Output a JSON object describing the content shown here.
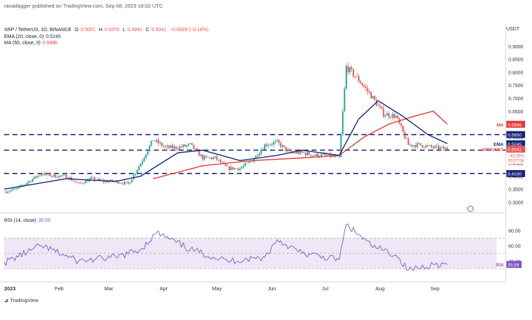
{
  "header": {
    "published_by": "ranadagger published on TradingView.com, Sep 08, 2023 18:02 UTC"
  },
  "legend": {
    "symbol_line": {
      "symbol": "XRP / TetherUS, 1D, BINANCE",
      "o_label": "O",
      "o": "0.5051",
      "h_label": "H",
      "h": "0.5076",
      "l_label": "L",
      "l": "0.4941",
      "c_label": "C",
      "c": "0.5041",
      "change": "−0.0009 (−0.18%)"
    },
    "ema_line": {
      "label": "EMA (20, close, 0)",
      "value": "0.5245"
    },
    "ma_line": {
      "label": "MA (50, close, 0)",
      "value": "0.5996"
    }
  },
  "currency": "USDT",
  "watermark": "TradingView",
  "colors": {
    "up": "#26a69a",
    "down": "#ef5350",
    "ema": "#0d2a7a",
    "ma": "#e53935",
    "level": "#1a237e",
    "rsi": "#7e57c2",
    "rsi_band": "#ede7f6"
  },
  "chart_data": {
    "type": "candlestick",
    "title": "XRP / TetherUS, 1D, BINANCE",
    "x_ticks": [
      "2023",
      "Feb",
      "Mar",
      "Apr",
      "May",
      "Jun",
      "Jul",
      "Aug",
      "Sep"
    ],
    "y_ticks": [
      "0.9000",
      "0.8500",
      "0.8000",
      "0.7500",
      "0.7000",
      "0.6500",
      "0.6000",
      "0.5500",
      "0.5000",
      "0.4500",
      "0.4000",
      "0.3500",
      "0.3000"
    ],
    "ylim": [
      0.28,
      0.95
    ],
    "horizontal_levels": [
      {
        "value": 0.56,
        "label": "0.5600"
      },
      {
        "value": 0.5,
        "label": "0.5000"
      },
      {
        "value": 0.41,
        "label": "0.4100"
      }
    ],
    "price_tags": [
      {
        "name": "MA",
        "value": 0.5996,
        "label": "0.5996"
      },
      {
        "name": "EMA",
        "value": 0.5245,
        "label": "0.5245"
      },
      {
        "name": "XRPUSDT",
        "value": 0.5041,
        "label": "0.5041",
        "sub1": "−43.29%",
        "sub2": "05:57:08"
      }
    ],
    "price_series": [
      {
        "date": "2023-01-01",
        "close": 0.34
      },
      {
        "date": "2023-01-08",
        "close": 0.35
      },
      {
        "date": "2023-01-15",
        "close": 0.38
      },
      {
        "date": "2023-01-22",
        "close": 0.41
      },
      {
        "date": "2023-01-29",
        "close": 0.4
      },
      {
        "date": "2023-02-05",
        "close": 0.4
      },
      {
        "date": "2023-02-12",
        "close": 0.37
      },
      {
        "date": "2023-02-19",
        "close": 0.39
      },
      {
        "date": "2023-02-26",
        "close": 0.38
      },
      {
        "date": "2023-03-05",
        "close": 0.38
      },
      {
        "date": "2023-03-12",
        "close": 0.37
      },
      {
        "date": "2023-03-19",
        "close": 0.45
      },
      {
        "date": "2023-03-26",
        "close": 0.54
      },
      {
        "date": "2023-04-02",
        "close": 0.51
      },
      {
        "date": "2023-04-09",
        "close": 0.51
      },
      {
        "date": "2023-04-16",
        "close": 0.52
      },
      {
        "date": "2023-04-23",
        "close": 0.47
      },
      {
        "date": "2023-04-30",
        "close": 0.47
      },
      {
        "date": "2023-05-07",
        "close": 0.43
      },
      {
        "date": "2023-05-14",
        "close": 0.43
      },
      {
        "date": "2023-05-21",
        "close": 0.46
      },
      {
        "date": "2023-05-28",
        "close": 0.52
      },
      {
        "date": "2023-06-04",
        "close": 0.53
      },
      {
        "date": "2023-06-11",
        "close": 0.49
      },
      {
        "date": "2023-06-18",
        "close": 0.49
      },
      {
        "date": "2023-06-25",
        "close": 0.48
      },
      {
        "date": "2023-07-02",
        "close": 0.48
      },
      {
        "date": "2023-07-09",
        "close": 0.47
      },
      {
        "date": "2023-07-13",
        "close": 0.82
      },
      {
        "date": "2023-07-20",
        "close": 0.77
      },
      {
        "date": "2023-07-27",
        "close": 0.71
      },
      {
        "date": "2023-08-03",
        "close": 0.64
      },
      {
        "date": "2023-08-10",
        "close": 0.63
      },
      {
        "date": "2023-08-17",
        "close": 0.52
      },
      {
        "date": "2023-08-24",
        "close": 0.52
      },
      {
        "date": "2023-08-31",
        "close": 0.51
      },
      {
        "date": "2023-09-08",
        "close": 0.504
      }
    ],
    "series": [
      {
        "name": "EMA (20, close, 0)",
        "values": [
          {
            "date": "2023-01-01",
            "value": 0.35
          },
          {
            "date": "2023-02-05",
            "value": 0.39
          },
          {
            "date": "2023-03-05",
            "value": 0.38
          },
          {
            "date": "2023-03-19",
            "value": 0.4
          },
          {
            "date": "2023-04-09",
            "value": 0.49
          },
          {
            "date": "2023-04-23",
            "value": 0.5
          },
          {
            "date": "2023-05-14",
            "value": 0.46
          },
          {
            "date": "2023-06-04",
            "value": 0.48
          },
          {
            "date": "2023-06-18",
            "value": 0.5
          },
          {
            "date": "2023-07-09",
            "value": 0.48
          },
          {
            "date": "2023-07-20",
            "value": 0.62
          },
          {
            "date": "2023-07-31",
            "value": 0.69
          },
          {
            "date": "2023-08-14",
            "value": 0.63
          },
          {
            "date": "2023-08-28",
            "value": 0.56
          },
          {
            "date": "2023-09-08",
            "value": 0.525
          }
        ]
      },
      {
        "name": "MA (50, close, 0)",
        "values": [
          {
            "date": "2023-03-26",
            "value": 0.39
          },
          {
            "date": "2023-04-23",
            "value": 0.44
          },
          {
            "date": "2023-05-21",
            "value": 0.46
          },
          {
            "date": "2023-06-18",
            "value": 0.47
          },
          {
            "date": "2023-07-09",
            "value": 0.48
          },
          {
            "date": "2023-07-23",
            "value": 0.55
          },
          {
            "date": "2023-08-06",
            "value": 0.6
          },
          {
            "date": "2023-08-20",
            "value": 0.63
          },
          {
            "date": "2023-08-31",
            "value": 0.65
          },
          {
            "date": "2023-09-08",
            "value": 0.6
          }
        ]
      }
    ],
    "rsi": {
      "label": "RSI (14, close)",
      "value": "35.59",
      "tag": "RSI",
      "y_ticks": [
        "80.00",
        "60.00",
        "40.00"
      ],
      "ylim": [
        20,
        92
      ],
      "band": [
        30,
        70
      ],
      "values": [
        {
          "date": "2023-01-01",
          "value": 38
        },
        {
          "date": "2023-01-22",
          "value": 60
        },
        {
          "date": "2023-02-12",
          "value": 40
        },
        {
          "date": "2023-03-05",
          "value": 45
        },
        {
          "date": "2023-03-19",
          "value": 55
        },
        {
          "date": "2023-03-28",
          "value": 77
        },
        {
          "date": "2023-04-16",
          "value": 55
        },
        {
          "date": "2023-05-07",
          "value": 40
        },
        {
          "date": "2023-05-28",
          "value": 45
        },
        {
          "date": "2023-06-04",
          "value": 68
        },
        {
          "date": "2023-06-18",
          "value": 50
        },
        {
          "date": "2023-07-09",
          "value": 42
        },
        {
          "date": "2023-07-13",
          "value": 88
        },
        {
          "date": "2023-07-27",
          "value": 60
        },
        {
          "date": "2023-08-10",
          "value": 48
        },
        {
          "date": "2023-08-17",
          "value": 28
        },
        {
          "date": "2023-08-31",
          "value": 36
        },
        {
          "date": "2023-09-08",
          "value": 35.59
        }
      ]
    }
  }
}
